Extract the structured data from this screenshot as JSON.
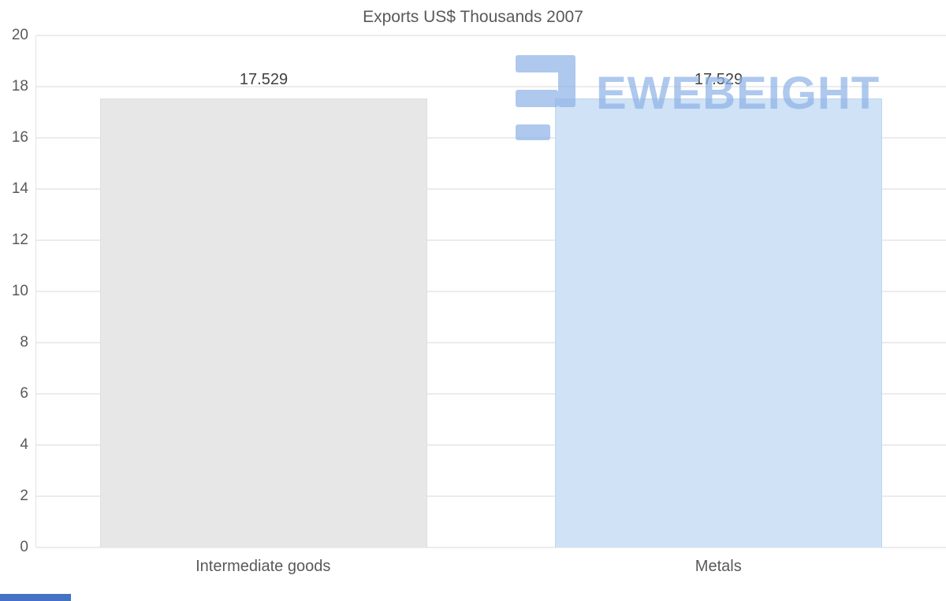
{
  "title": "Exports US$ Thousands 2007",
  "watermark": {
    "text": "EWEBEIGHT",
    "color": "#8fb4e8"
  },
  "colors": {
    "title_text": "#595959",
    "axis_text": "#595959",
    "gridline": "#d9d9d9",
    "bar_intermediate_goods": "#e7e7e7",
    "bar_metals": "#cfe2f6",
    "bottom_accent": "#4472c4"
  },
  "chart_data": {
    "type": "bar",
    "title": "Exports US$ Thousands 2007",
    "categories": [
      "Intermediate goods",
      "Metals"
    ],
    "values": [
      17.529,
      17.529
    ],
    "value_labels": [
      "17.529",
      "17.529"
    ],
    "series_unit": "US$ Thousands",
    "xlabel": "",
    "ylabel": "",
    "ylim": [
      0,
      20
    ],
    "ytick_step": 2,
    "ytick_labels": [
      "0",
      "2",
      "4",
      "6",
      "8",
      "10",
      "12",
      "14",
      "16",
      "18",
      "20"
    ],
    "grid": true,
    "legend": "none",
    "bar_colors": [
      "#e7e7e7",
      "#cfe2f6"
    ],
    "bar_border_colors": [
      "#dedede",
      "#bfd7ef"
    ]
  }
}
